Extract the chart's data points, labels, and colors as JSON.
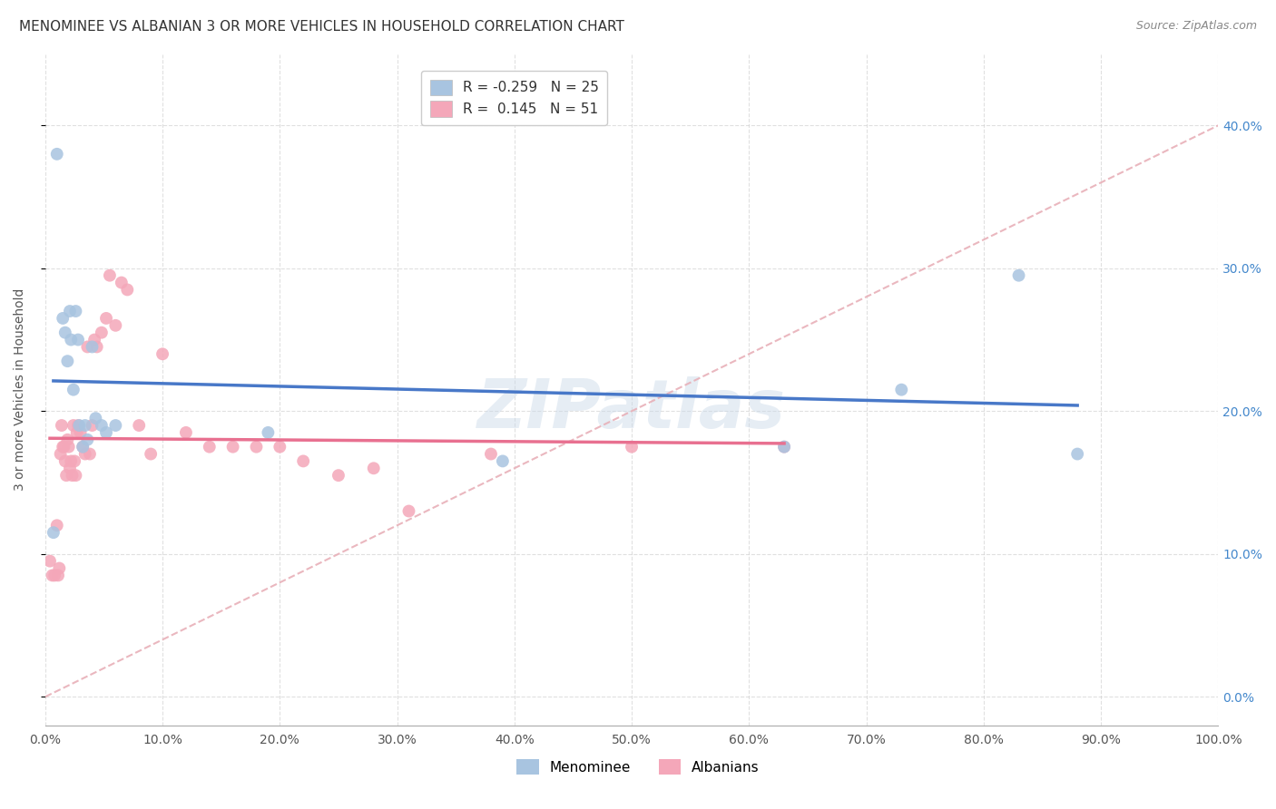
{
  "title": "MENOMINEE VS ALBANIAN 3 OR MORE VEHICLES IN HOUSEHOLD CORRELATION CHART",
  "source": "Source: ZipAtlas.com",
  "ylabel": "3 or more Vehicles in Household",
  "watermark": "ZIPatlas",
  "menominee_R": -0.259,
  "menominee_N": 25,
  "albanian_R": 0.145,
  "albanian_N": 51,
  "xlim": [
    0.0,
    1.0
  ],
  "ylim": [
    -0.02,
    0.45
  ],
  "xticks": [
    0.0,
    0.1,
    0.2,
    0.3,
    0.4,
    0.5,
    0.6,
    0.7,
    0.8,
    0.9,
    1.0
  ],
  "yticks": [
    0.0,
    0.1,
    0.2,
    0.3,
    0.4
  ],
  "ytick_labels": [
    "0.0%",
    "10.0%",
    "20.0%",
    "30.0%",
    "40.0%"
  ],
  "xtick_labels": [
    "0.0%",
    "10.0%",
    "20.0%",
    "30.0%",
    "40.0%",
    "50.0%",
    "60.0%",
    "70.0%",
    "80.0%",
    "90.0%",
    "100.0%"
  ],
  "menominee_color": "#a8c4e0",
  "albanian_color": "#f4a7b9",
  "menominee_line_color": "#4878c8",
  "albanian_line_color": "#e87090",
  "ref_line_color": "#e8b0b8",
  "background_color": "#ffffff",
  "grid_color": "#cccccc",
  "menominee_x": [
    0.007,
    0.01,
    0.015,
    0.017,
    0.019,
    0.021,
    0.022,
    0.024,
    0.026,
    0.028,
    0.029,
    0.032,
    0.034,
    0.036,
    0.04,
    0.043,
    0.048,
    0.052,
    0.06,
    0.19,
    0.39,
    0.63,
    0.73,
    0.83,
    0.88
  ],
  "menominee_y": [
    0.115,
    0.38,
    0.265,
    0.255,
    0.235,
    0.27,
    0.25,
    0.215,
    0.27,
    0.25,
    0.19,
    0.175,
    0.19,
    0.18,
    0.245,
    0.195,
    0.19,
    0.185,
    0.19,
    0.185,
    0.165,
    0.175,
    0.215,
    0.295,
    0.17
  ],
  "albanian_x": [
    0.004,
    0.006,
    0.008,
    0.01,
    0.011,
    0.012,
    0.013,
    0.014,
    0.015,
    0.016,
    0.017,
    0.018,
    0.019,
    0.02,
    0.021,
    0.022,
    0.023,
    0.024,
    0.025,
    0.026,
    0.027,
    0.028,
    0.03,
    0.032,
    0.034,
    0.036,
    0.038,
    0.04,
    0.042,
    0.044,
    0.048,
    0.052,
    0.055,
    0.06,
    0.065,
    0.07,
    0.08,
    0.09,
    0.1,
    0.12,
    0.14,
    0.16,
    0.18,
    0.2,
    0.22,
    0.25,
    0.28,
    0.31,
    0.38,
    0.5,
    0.63
  ],
  "albanian_y": [
    0.095,
    0.085,
    0.085,
    0.12,
    0.085,
    0.09,
    0.17,
    0.19,
    0.175,
    0.175,
    0.165,
    0.155,
    0.18,
    0.175,
    0.16,
    0.165,
    0.155,
    0.19,
    0.165,
    0.155,
    0.185,
    0.19,
    0.185,
    0.175,
    0.17,
    0.245,
    0.17,
    0.19,
    0.25,
    0.245,
    0.255,
    0.265,
    0.295,
    0.26,
    0.29,
    0.285,
    0.19,
    0.17,
    0.24,
    0.185,
    0.175,
    0.175,
    0.175,
    0.175,
    0.165,
    0.155,
    0.16,
    0.13,
    0.17,
    0.175,
    0.175
  ],
  "title_fontsize": 11,
  "axis_label_fontsize": 10,
  "tick_fontsize": 10,
  "legend_fontsize": 11,
  "source_fontsize": 9,
  "scatter_size": 100
}
